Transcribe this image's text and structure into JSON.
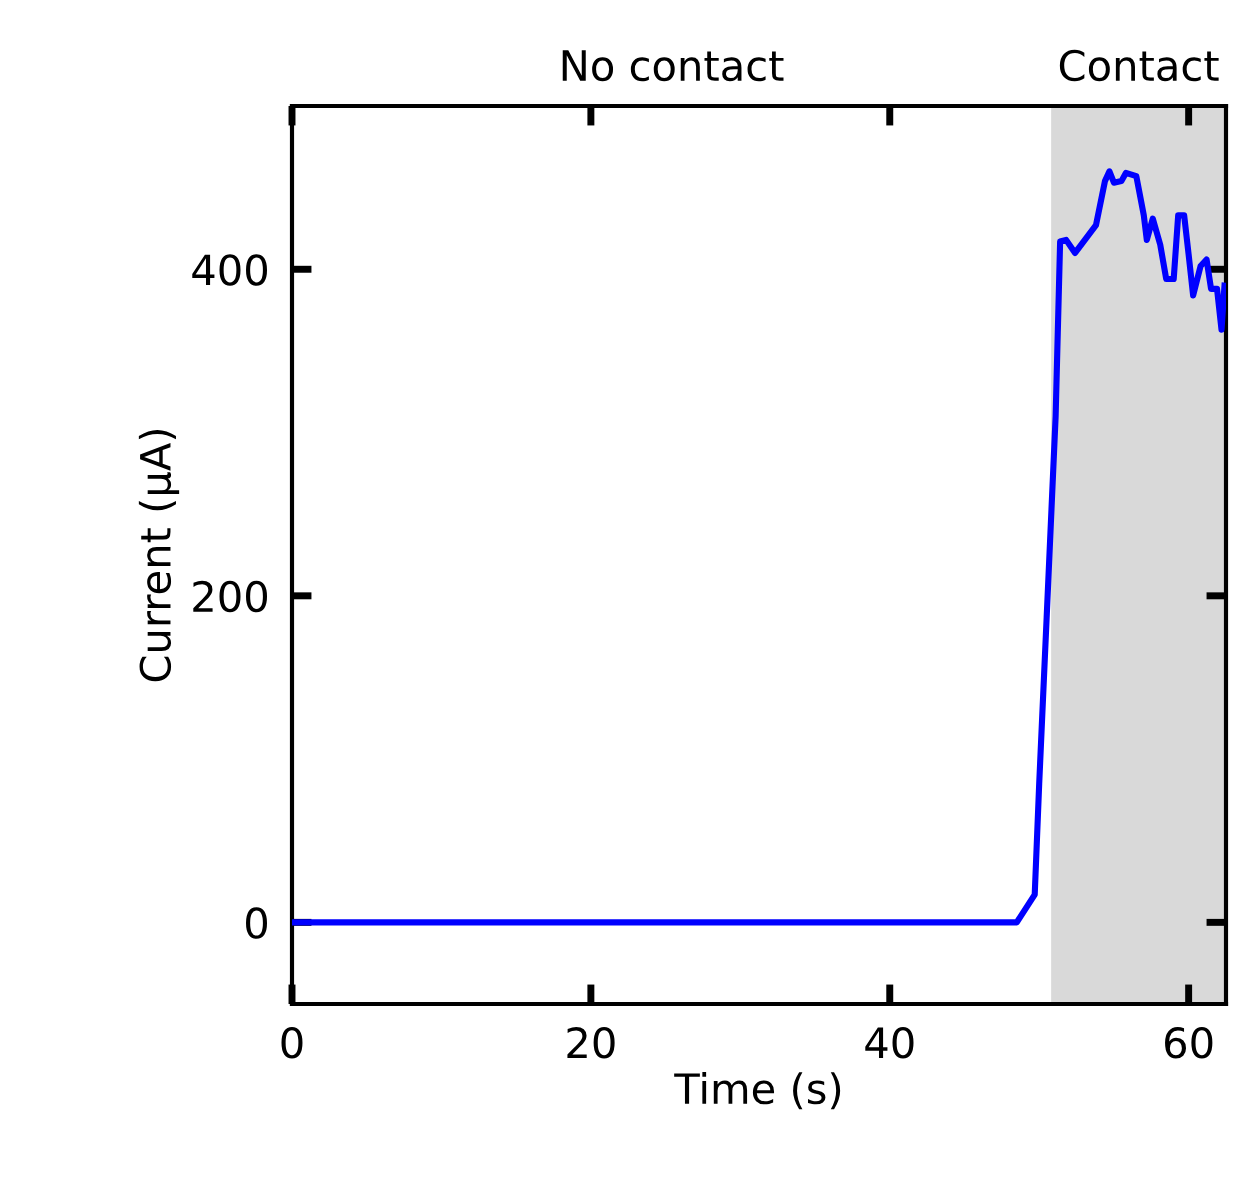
{
  "chart_data": {
    "type": "line",
    "xlabel": "Time (s)",
    "ylabel": "Current (μA)",
    "annotations": [
      "No contact",
      "Contact"
    ],
    "xlim": [
      0,
      62.5
    ],
    "ylim": [
      -50,
      500
    ],
    "xticks": [
      0,
      20,
      40,
      60
    ],
    "yticks": [
      0,
      200,
      400
    ],
    "bands": [
      {
        "axis": "x",
        "from": 50.8,
        "to": 62.5,
        "color": "#d9d9d9"
      }
    ],
    "grid": false,
    "series": [
      {
        "color": "#0000ff",
        "x": [
          0,
          48.5,
          49.7,
          50.0,
          50.5,
          51.1,
          51.4,
          51.8,
          52.4,
          53.8,
          54.4,
          54.7,
          55.0,
          55.5,
          55.8,
          56.5,
          57.0,
          57.2,
          57.6,
          58.1,
          58.5,
          59.0,
          59.3,
          59.7,
          60.0,
          60.3,
          60.8,
          61.2,
          61.5,
          61.9,
          62.2,
          62.4
        ],
        "values": [
          0,
          0,
          17,
          85,
          187,
          310,
          417,
          418,
          410,
          427,
          454,
          460,
          453,
          454,
          459,
          457,
          433,
          418,
          431,
          415,
          394,
          394,
          433,
          433,
          409,
          384,
          402,
          406,
          388,
          388,
          363,
          390
        ]
      }
    ]
  }
}
